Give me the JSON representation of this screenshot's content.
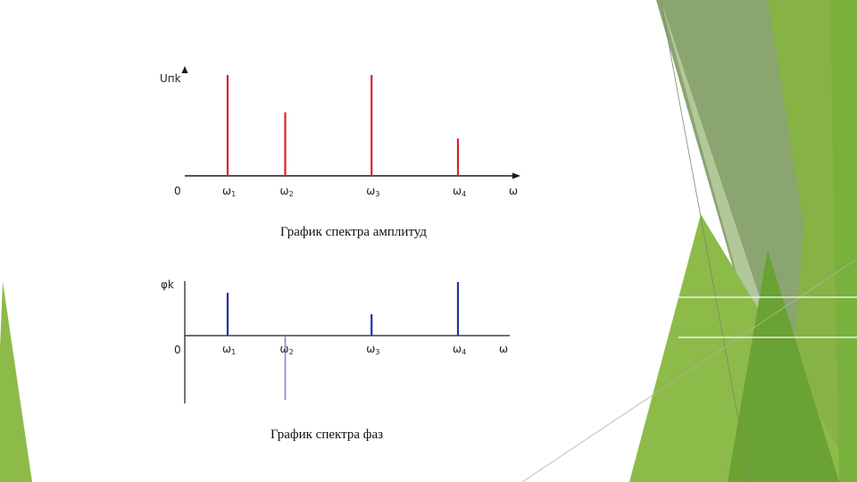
{
  "slide": {
    "caption_amplitude": "График спектра амплитуд",
    "caption_phase": "График спектра фаз"
  },
  "colors": {
    "amplitude_lines": "#d9232a",
    "phase_lines": "#2530a6",
    "phase_negative_line": "#7d86e0",
    "axis": "#1a1a1a",
    "deco_green_light": "#8dbb4a",
    "deco_green_mid": "#76a83a",
    "deco_gray_green": "#8aa56f"
  },
  "chart_data": [
    {
      "type": "bar",
      "title": "График спектра амплитуд",
      "ylabel": "Uпk",
      "xlabel": "ω",
      "origin_label": "0",
      "categories": [
        "ω1",
        "ω2",
        "ω3",
        "ω4"
      ],
      "x_positions": [
        1,
        2,
        3.5,
        5
      ],
      "values": [
        1.0,
        0.63,
        1.0,
        0.37
      ],
      "ylim": [
        0,
        1.1
      ],
      "grid": false
    },
    {
      "type": "bar",
      "title": "График спектра фаз",
      "ylabel": "φk",
      "xlabel": "ω",
      "origin_label": "0",
      "categories": [
        "ω1",
        "ω2",
        "ω3",
        "ω4"
      ],
      "x_positions": [
        1,
        2,
        3.5,
        5
      ],
      "values": [
        0.8,
        -1.2,
        0.4,
        1.0
      ],
      "ylim": [
        -1.2,
        1.0
      ],
      "grid": false
    }
  ]
}
